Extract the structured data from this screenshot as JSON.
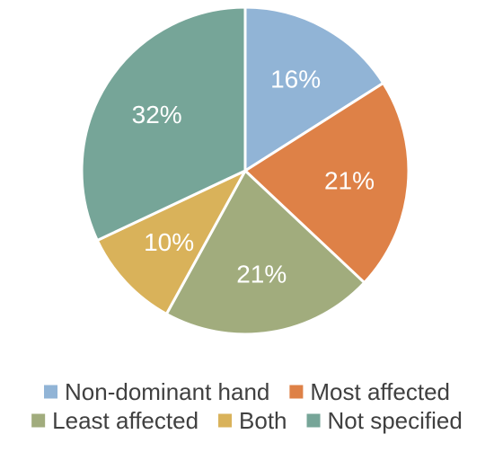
{
  "chart_data": {
    "type": "pie",
    "title": "",
    "start_angle_deg": 0,
    "direction": "clockwise",
    "legend_position": "bottom",
    "slices": [
      {
        "label": "Non-dominant hand",
        "value": 16,
        "value_label": "16%",
        "color": "#91B4D6"
      },
      {
        "label": "Most affected",
        "value": 21,
        "value_label": "21%",
        "color": "#DE8147"
      },
      {
        "label": "Least affected",
        "value": 21,
        "value_label": "21%",
        "color": "#A1AC7D"
      },
      {
        "label": "Both",
        "value": 10,
        "value_label": "10%",
        "color": "#D9B25A"
      },
      {
        "label": "Not specified",
        "value": 32,
        "value_label": "32%",
        "color": "#76A598"
      }
    ]
  }
}
